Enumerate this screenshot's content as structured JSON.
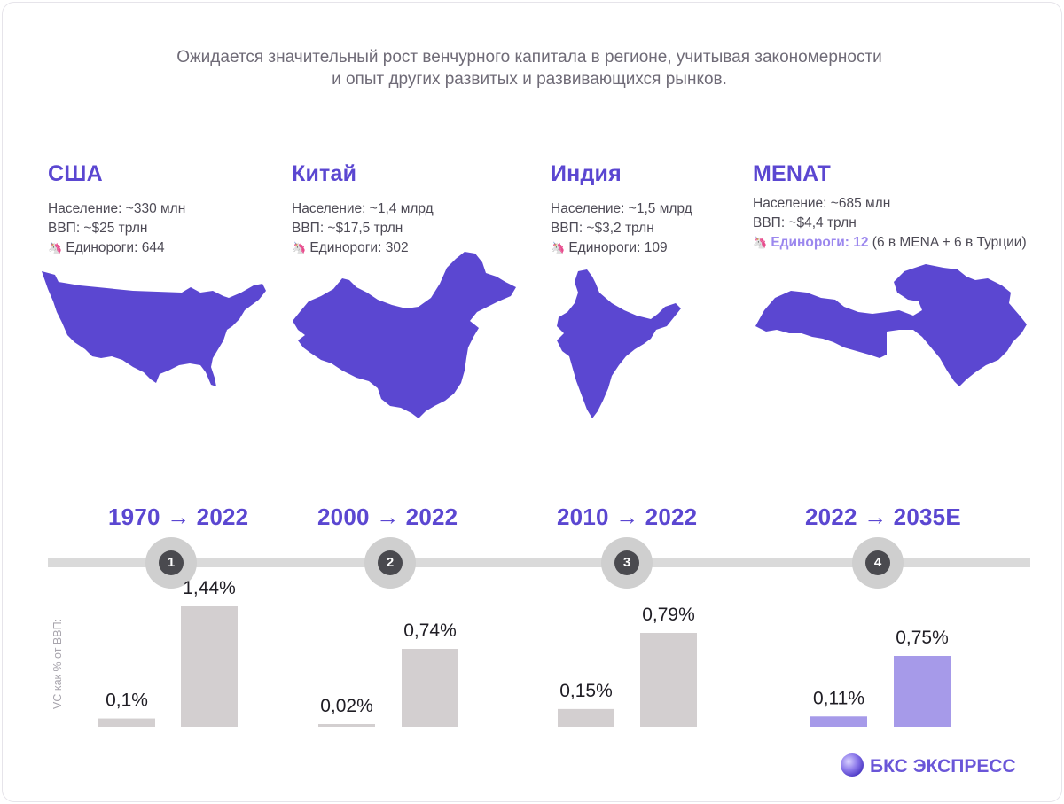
{
  "intro": {
    "line1": "Ожидается значительный рост венчурного капитала в регионе, учитывая закономерности",
    "line2": "и опыт других развитых и развивающихся рынков."
  },
  "regions": [
    {
      "name": "США",
      "population": "Население: ~330 млн",
      "gdp": "ВВП: ~$25 трлн",
      "unicorns": "Единороги: 644",
      "unicorns_extra": ""
    },
    {
      "name": "Китай",
      "population": "Население: ~1,4 млрд",
      "gdp": "ВВП: ~$17,5 трлн",
      "unicorns": "Единороги: 302",
      "unicorns_extra": ""
    },
    {
      "name": "Индия",
      "population": "Население: ~1,5 млрд",
      "gdp": "ВВП: ~$3,2 трлн",
      "unicorns": "Единороги: 109",
      "unicorns_extra": ""
    },
    {
      "name": "MENAT",
      "population": "Население: ~685 млн",
      "gdp": "ВВП: ~$4,4 трлн",
      "unicorns": "Единороги: 12",
      "unicorns_extra": " (6 в MENA + 6 в Турции)"
    }
  ],
  "icons": {
    "unicorn": "🦄",
    "map": "country-silhouette",
    "logo": "sphere-logo"
  },
  "timeline": {
    "markers": [
      "1",
      "2",
      "3",
      "4"
    ],
    "periods": [
      "1970 → 2022",
      "2000 → 2022",
      "2010 → 2022",
      "2022 → 2035E"
    ]
  },
  "colors": {
    "accent": "#5b47d1",
    "bar_grey": "#d3cfd0",
    "bar_purple": "#a69ae9",
    "track": "#dadada",
    "marker_dark": "#4a4a4f"
  },
  "chart_data": {
    "type": "bar",
    "ylabel": "VC как % от ВВП:",
    "categories": [
      "США",
      "Китай",
      "Индия",
      "MENAT"
    ],
    "groups": [
      {
        "period": "1970 → 2022",
        "values": [
          0.1,
          1.44
        ],
        "labels": [
          "0,1%",
          "1,44%"
        ],
        "color": "grey"
      },
      {
        "period": "2000 → 2022",
        "values": [
          0.02,
          0.74
        ],
        "labels": [
          "0,02%",
          "0,74%"
        ],
        "color": "grey"
      },
      {
        "period": "2010 → 2022",
        "values": [
          0.15,
          0.79
        ],
        "labels": [
          "0,15%",
          "0,79%"
        ],
        "color": "grey"
      },
      {
        "period": "2022 → 2035E",
        "values": [
          0.11,
          0.75
        ],
        "labels": [
          "0,11%",
          "0,75%"
        ],
        "color": "purple"
      }
    ],
    "grid": false,
    "legend": "none"
  },
  "logo": {
    "text": "БКС ЭКСПРЕСС"
  }
}
